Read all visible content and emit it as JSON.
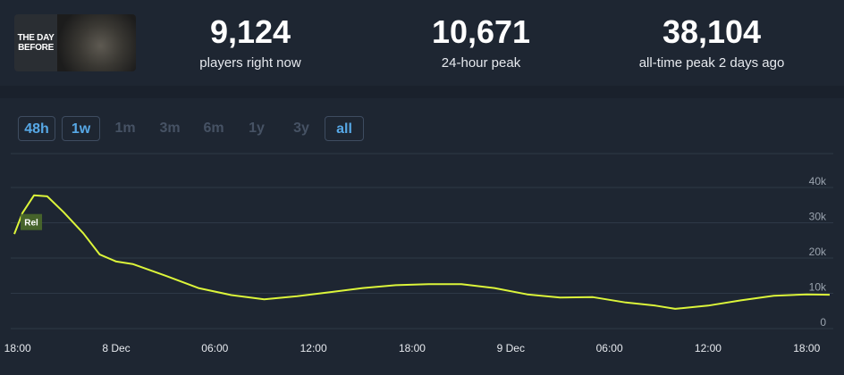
{
  "game": {
    "logo_line1": "THE DAY",
    "logo_line2": "BEFORE",
    "logo_icon": "game-cover-art"
  },
  "stats": [
    {
      "value": "9,124",
      "label": "players right now"
    },
    {
      "value": "10,671",
      "label": "24-hour peak"
    },
    {
      "value": "38,104",
      "label": "all-time peak 2 days ago"
    }
  ],
  "range_buttons": [
    {
      "label": "48h",
      "active": true
    },
    {
      "label": "1w",
      "active": true
    },
    {
      "label": "1m",
      "active": false
    },
    {
      "label": "3m",
      "active": false
    },
    {
      "label": "6m",
      "active": false
    },
    {
      "label": "1y",
      "active": false
    },
    {
      "label": "3y",
      "active": false
    },
    {
      "label": "all",
      "active": true
    }
  ],
  "colors": {
    "line": "#dcf53a",
    "accent": "#57a8e6",
    "marker": "#4a6a2a"
  },
  "chart_data": {
    "type": "line",
    "xlim": [
      17.8,
      67.4
    ],
    "ylim": [
      0,
      40000
    ],
    "yticks": [
      0,
      10000,
      20000,
      30000,
      40000
    ],
    "ytick_labels": [
      "0",
      "10k",
      "20k",
      "30k",
      "40k"
    ],
    "xticks": [
      18,
      24,
      30,
      36,
      42,
      48,
      54,
      60,
      66
    ],
    "xtick_labels": [
      "18:00",
      "8 Dec",
      "06:00",
      "12:00",
      "18:00",
      "9 Dec",
      "06:00",
      "12:00",
      "18:00"
    ],
    "grid": true,
    "marker": {
      "label": "Rel",
      "x": 18.4,
      "y": 30200
    },
    "series": [
      {
        "x": [
          17.8,
          18.3,
          19.0,
          19.8,
          20.8,
          22.0,
          23.0,
          24.0,
          25.0,
          27.0,
          29.0,
          31.0,
          33.0,
          35.0,
          37.0,
          39.0,
          41.0,
          43.0,
          45.0,
          47.0,
          49.0,
          51.0,
          53.0,
          55.0,
          56.8,
          58.0,
          60.0,
          62.0,
          64.0,
          66.0,
          67.4
        ],
        "y": [
          26800,
          32800,
          37800,
          37500,
          33000,
          27000,
          21000,
          19000,
          18300,
          15000,
          11500,
          9500,
          8300,
          9200,
          10300,
          11500,
          12300,
          12600,
          12600,
          11500,
          9700,
          8800,
          8900,
          7400,
          6500,
          5600,
          6500,
          8000,
          9300,
          9700,
          9600
        ]
      }
    ]
  }
}
